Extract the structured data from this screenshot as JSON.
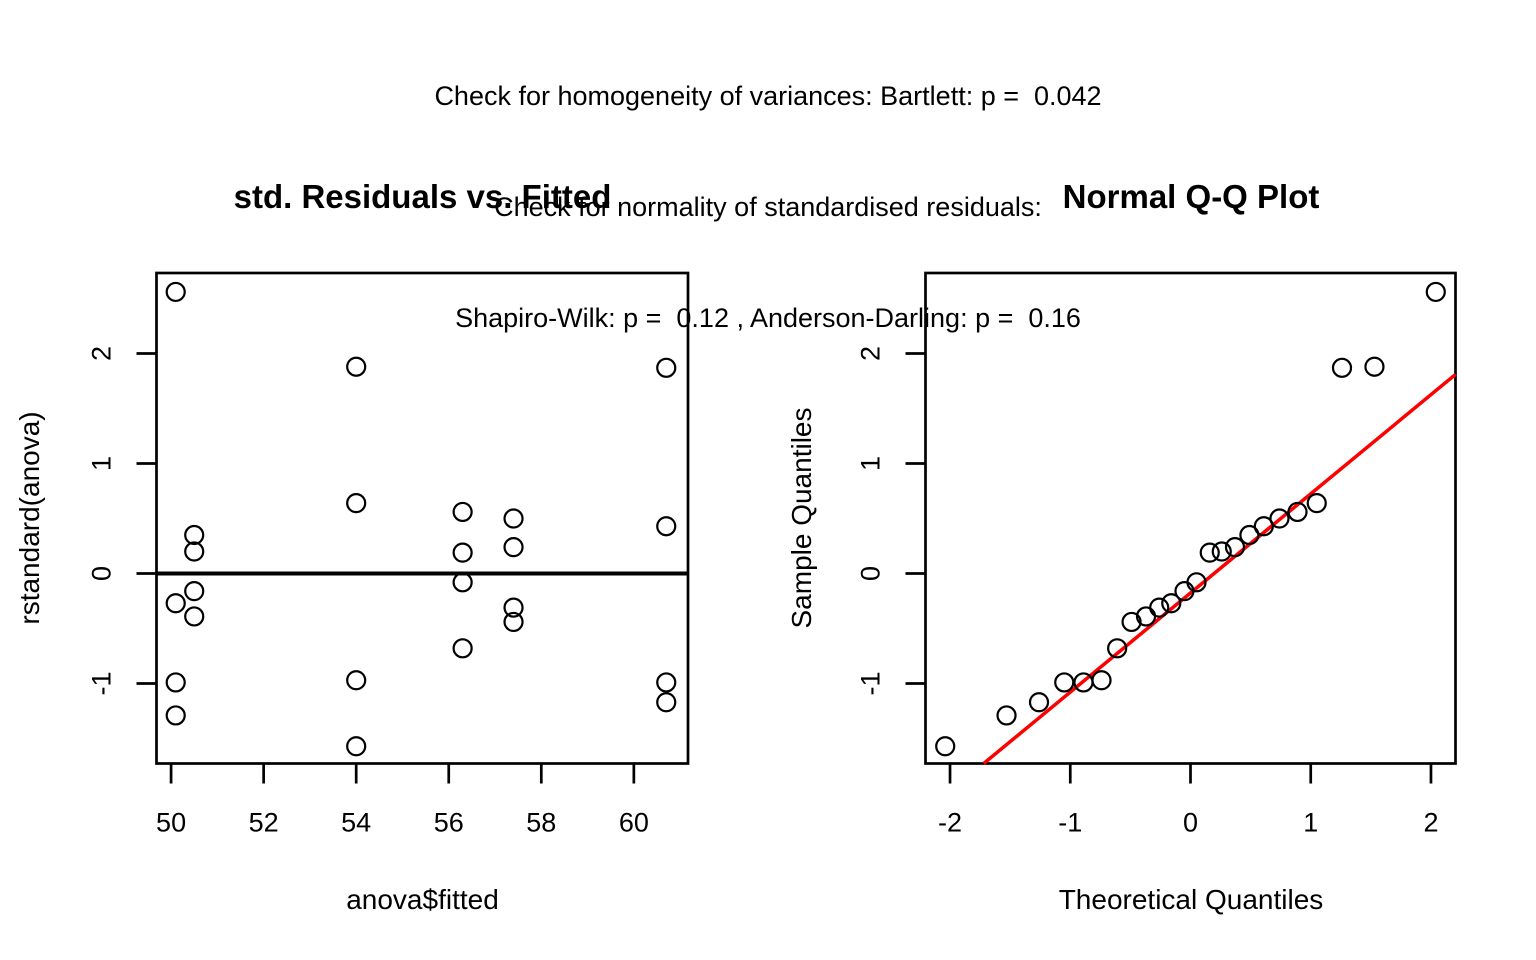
{
  "header": {
    "line1": "Check for homogeneity of variances: Bartlett: p =  0.042",
    "line2": "Check for normality of standardised residuals:",
    "line3": "Shapiro-Wilk: p =  0.12 , Anderson-Darling: p =  0.16"
  },
  "colors": {
    "background": "#ffffff",
    "foreground": "#000000",
    "qq_line": "#ff0000"
  },
  "chart_data": [
    {
      "type": "scatter",
      "title": "std. Residuals vs. Fitted",
      "xlabel": "anova$fitted",
      "ylabel": "rstandard(anova)",
      "xlim": [
        49.685,
        61.17
      ],
      "ylim": [
        -1.727,
        2.732
      ],
      "xticks": [
        50,
        52,
        54,
        56,
        58,
        60
      ],
      "yticks": [
        -1,
        0,
        1,
        2
      ],
      "grid": false,
      "hline_y": 0,
      "points": [
        [
          50.1,
          2.56
        ],
        [
          50.1,
          -0.27
        ],
        [
          50.1,
          -0.99
        ],
        [
          50.1,
          -1.29
        ],
        [
          50.5,
          0.35
        ],
        [
          50.5,
          0.2
        ],
        [
          50.5,
          -0.16
        ],
        [
          50.5,
          -0.39
        ],
        [
          54.0,
          1.88
        ],
        [
          54.0,
          0.64
        ],
        [
          54.0,
          -0.97
        ],
        [
          54.0,
          -1.57
        ],
        [
          56.3,
          0.56
        ],
        [
          56.3,
          0.19
        ],
        [
          56.3,
          -0.08
        ],
        [
          56.3,
          -0.68
        ],
        [
          57.4,
          0.5
        ],
        [
          57.4,
          0.24
        ],
        [
          57.4,
          -0.31
        ],
        [
          57.4,
          -0.44
        ],
        [
          60.7,
          1.87
        ],
        [
          60.7,
          0.43
        ],
        [
          60.7,
          -0.99
        ],
        [
          60.7,
          -1.17
        ]
      ]
    },
    {
      "type": "scatter",
      "title": "Normal Q-Q Plot",
      "xlabel": "Theoretical Quantiles",
      "ylabel": "Sample Quantiles",
      "xlim": [
        -2.204,
        2.204
      ],
      "ylim": [
        -1.727,
        2.732
      ],
      "xticks": [
        -2,
        -1,
        0,
        1,
        2
      ],
      "yticks": [
        -1,
        0,
        1,
        2
      ],
      "grid": false,
      "qq_line": {
        "x1": -1.72,
        "y1": -1.727,
        "x2": 2.204,
        "y2": 1.81,
        "slope": 0.89,
        "intercept": -0.15
      },
      "points": [
        [
          -2.04,
          -1.57
        ],
        [
          -1.53,
          -1.29
        ],
        [
          -1.26,
          -1.17
        ],
        [
          -1.05,
          -0.99
        ],
        [
          -0.89,
          -0.99
        ],
        [
          -0.74,
          -0.97
        ],
        [
          -0.61,
          -0.68
        ],
        [
          -0.49,
          -0.44
        ],
        [
          -0.37,
          -0.39
        ],
        [
          -0.26,
          -0.31
        ],
        [
          -0.16,
          -0.27
        ],
        [
          -0.05,
          -0.16
        ],
        [
          0.05,
          -0.08
        ],
        [
          0.16,
          0.19
        ],
        [
          0.26,
          0.2
        ],
        [
          0.37,
          0.24
        ],
        [
          0.49,
          0.35
        ],
        [
          0.61,
          0.43
        ],
        [
          0.74,
          0.5
        ],
        [
          0.89,
          0.56
        ],
        [
          1.05,
          0.64
        ],
        [
          1.26,
          1.87
        ],
        [
          1.53,
          1.88
        ],
        [
          2.04,
          2.56
        ]
      ]
    }
  ]
}
